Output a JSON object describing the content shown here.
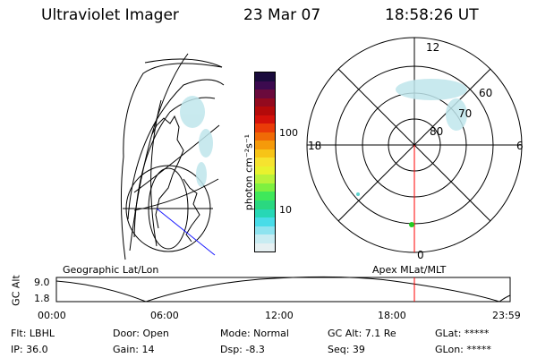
{
  "header": {
    "instrument": "Ultraviolet Imager",
    "date": "23 Mar 07",
    "time": "18:58:26 UT"
  },
  "colorbar": {
    "label": "photon cm⁻²s⁻¹",
    "ticks": [
      "100",
      "10"
    ],
    "colors": [
      "#1a0b3c",
      "#3c0a4f",
      "#6a0a3c",
      "#930a1e",
      "#b40a0a",
      "#d4110a",
      "#ea3b08",
      "#f06a06",
      "#f59a0a",
      "#f7c417",
      "#f6e32f",
      "#e8f22e",
      "#b8f23a",
      "#7ef040",
      "#3fe85a",
      "#2ad880",
      "#27d7b6",
      "#48dce8",
      "#8ee3ef",
      "#c8ecf2",
      "#e6f0f2"
    ]
  },
  "polar": {
    "mlt_labels": {
      "top": "12",
      "bottom": "0",
      "left": "18",
      "right": "6"
    },
    "lat_labels": [
      "60",
      "70",
      "80"
    ]
  },
  "timeline": {
    "left_label": "Geographic Lat/Lon",
    "right_label": "Apex MLat/MLT",
    "axis_title": "GC Alt",
    "y_ticks": [
      "9.0",
      "1.8"
    ],
    "x_ticks": [
      "00:00",
      "06:00",
      "12:00",
      "18:00",
      "23:59"
    ],
    "marker_color": "#ff0000"
  },
  "status": {
    "flt": "Flt: LBHL",
    "ip": "IP: 36.0",
    "door": "Door: Open",
    "gain": "Gain: 14",
    "mode": "Mode: Normal",
    "dsp": "Dsp:   -8.3",
    "gc_alt": "GC Alt: 7.1 Re",
    "seq": "Seq: 39",
    "glat": "GLat: *****",
    "glon": "GLon: *****"
  }
}
